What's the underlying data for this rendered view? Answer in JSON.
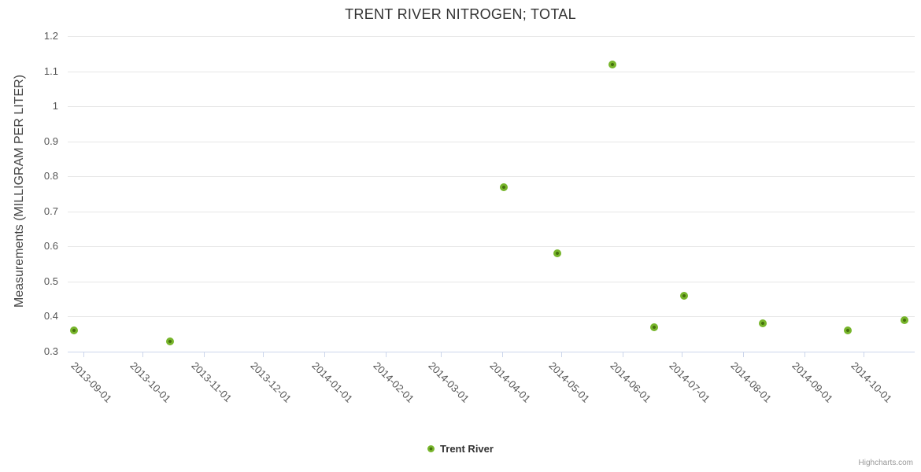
{
  "legend": {
    "series_label": "Trent River"
  },
  "credits": "Highcharts.com",
  "colors": {
    "title_color": "#333333",
    "axis_title_color": "#444444",
    "axis_label_color": "#555555",
    "axis_line_color": "#ccd6eb",
    "gridline_color": "#e6e6e6",
    "marker_color": "#77b52b",
    "marker_center_color": "#45700e",
    "legend_color": "#333333",
    "credits_color": "#999999"
  },
  "chart_data": {
    "type": "scatter",
    "title": "TRENT RIVER NITROGEN; TOTAL",
    "xlabel": "",
    "ylabel": "Measurements (MILLIGRAM PER LITER)",
    "ylim": [
      0.3,
      1.2
    ],
    "y_ticks": [
      "0.3",
      "0.4",
      "0.5",
      "0.6",
      "0.7",
      "0.8",
      "0.9",
      "1",
      "1.1",
      "1.2"
    ],
    "x_ticks": [
      "2013-09-01",
      "2013-10-01",
      "2013-11-01",
      "2013-12-01",
      "2014-01-01",
      "2014-02-01",
      "2014-03-01",
      "2014-04-01",
      "2014-05-01",
      "2014-06-01",
      "2014-07-01",
      "2014-08-01",
      "2014-09-01",
      "2014-10-01"
    ],
    "x_range": [
      "2013-08-24",
      "2014-10-27"
    ],
    "grid": "horizontal-only",
    "legend_position": "bottom-center",
    "series": [
      {
        "name": "Trent River",
        "color": "#77b52b",
        "points": [
          {
            "x": "2013-08-27",
            "y": 0.36
          },
          {
            "x": "2013-10-15",
            "y": 0.33
          },
          {
            "x": "2014-04-02",
            "y": 0.77
          },
          {
            "x": "2014-04-29",
            "y": 0.58
          },
          {
            "x": "2014-05-27",
            "y": 1.12
          },
          {
            "x": "2014-06-17",
            "y": 0.37
          },
          {
            "x": "2014-07-02",
            "y": 0.46
          },
          {
            "x": "2014-08-11",
            "y": 0.38
          },
          {
            "x": "2014-09-23",
            "y": 0.36
          },
          {
            "x": "2014-10-22",
            "y": 0.39
          }
        ]
      }
    ]
  }
}
